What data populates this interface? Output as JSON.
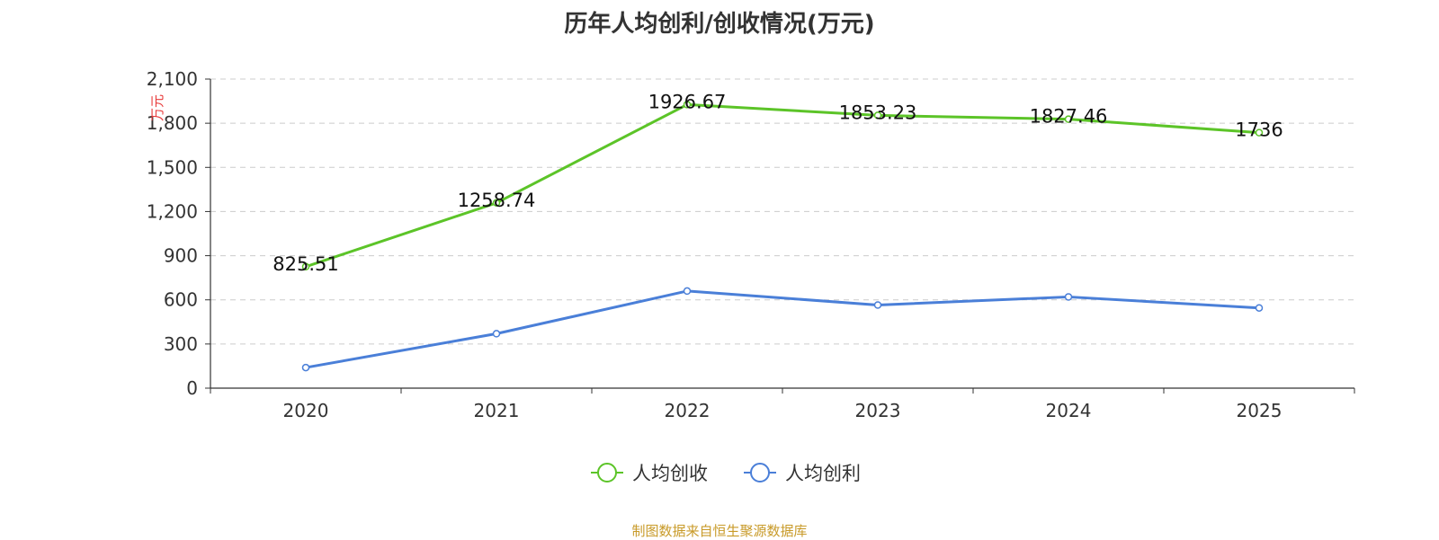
{
  "chart_data": {
    "type": "line",
    "title": "历年人均创利/创收情况(万元)",
    "ylabel": "万元",
    "xlabel": "",
    "categories": [
      "2020",
      "2021",
      "2022",
      "2023",
      "2024",
      "2025"
    ],
    "ylim": [
      0,
      2100
    ],
    "yticks": [
      0,
      300,
      600,
      900,
      1200,
      1500,
      1800,
      2100
    ],
    "ytick_labels": [
      "0",
      "300",
      "600",
      "900",
      "1,200",
      "1,500",
      "1,800",
      "2,100"
    ],
    "grid": true,
    "legend_position": "bottom",
    "series": [
      {
        "name": "人均创收",
        "color": "#5cc428",
        "values": [
          825.51,
          1258.74,
          1926.67,
          1853.23,
          1827.46,
          1736
        ],
        "data_labels": [
          "825.51",
          "1258.74",
          "1926.67",
          "1853.23",
          "1827.46",
          "1736"
        ]
      },
      {
        "name": "人均创利",
        "color": "#4a7fd8",
        "values": [
          140,
          370,
          660,
          565,
          620,
          545
        ],
        "data_labels": []
      }
    ]
  },
  "source": {
    "text": "制图数据来自恒生聚源数据库",
    "color": "#c89a28"
  },
  "ylabel_color": "#e83a3a"
}
